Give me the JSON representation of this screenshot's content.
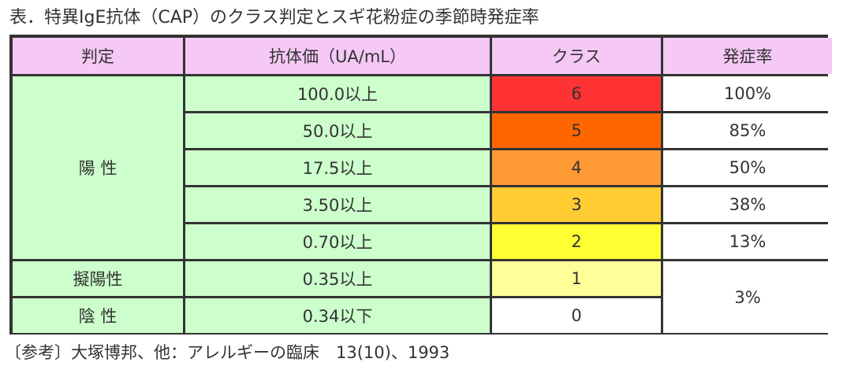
{
  "title": "表．特異IgE抗体（CAP）のクラス判定とスギ花粉症の季節時発症率",
  "table": {
    "headers": [
      "判定",
      "抗体価（UA/mL）",
      "クラス",
      "発症率"
    ],
    "judgments": {
      "positive": "陽 性",
      "pseudo_positive": "擬陽性",
      "negative": "陰 性"
    },
    "rows": [
      {
        "value": "100.0以上",
        "class": "6",
        "rate": "100%",
        "class_color": "#ff3333"
      },
      {
        "value": "50.0以上",
        "class": "5",
        "rate": "85%",
        "class_color": "#ff6600"
      },
      {
        "value": "17.5以上",
        "class": "4",
        "rate": "50%",
        "class_color": "#ff9933"
      },
      {
        "value": "3.50以上",
        "class": "3",
        "rate": "38%",
        "class_color": "#ffcc33"
      },
      {
        "value": "0.70以上",
        "class": "2",
        "rate": "13%",
        "class_color": "#ffff33"
      },
      {
        "value": "0.35以上",
        "class": "1",
        "class_color": "#ffff99"
      },
      {
        "value": "0.34以下",
        "class": "0",
        "class_color": "#ffffff"
      }
    ],
    "merged_rate": "3%"
  },
  "colors": {
    "header_bg": "#f5c8f5",
    "green_bg": "#ccffcc",
    "border": "#333333"
  },
  "reference": "〔参考〕大塚博邦、他：アレルギーの臨床　13(10)、1993"
}
